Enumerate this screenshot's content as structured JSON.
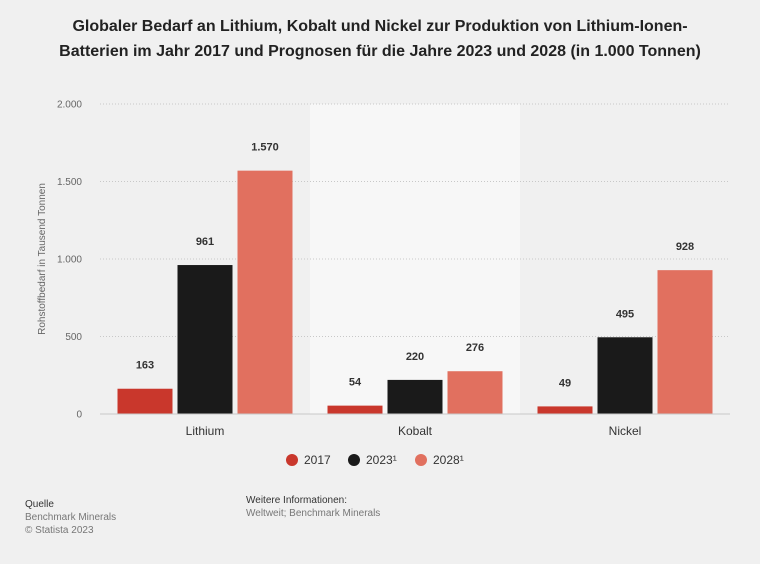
{
  "title": "Globaler Bedarf an Lithium, Kobalt und Nickel zur Produktion von Lithium-Ionen-Batterien im Jahr 2017 und Prognosen für die Jahre 2023 und 2028 (in 1.000 Tonnen)",
  "chart_data": {
    "type": "bar",
    "title": "Globaler Bedarf an Lithium, Kobalt und Nickel zur Produktion von Lithium-Ionen-Batterien im Jahr 2017 und Prognosen für die Jahre 2023 und 2028 (in 1.000 Tonnen)",
    "ylabel": "Rohstoffbedarf in Tausend Tonnen",
    "categories": [
      "Lithium",
      "Kobalt",
      "Nickel"
    ],
    "series": [
      {
        "name": "2017",
        "values": [
          163,
          54,
          49
        ],
        "color": "#c9372c"
      },
      {
        "name": "2023¹",
        "values": [
          961,
          220,
          495
        ],
        "color": "#1a1a1a"
      },
      {
        "name": "2028¹",
        "values": [
          1570,
          276,
          928
        ],
        "color": "#e1705f"
      }
    ],
    "data_labels": [
      [
        "163",
        "54",
        "49"
      ],
      [
        "961",
        "220",
        "495"
      ],
      [
        "1.570",
        "276",
        "928"
      ]
    ],
    "ylim": [
      0,
      2000
    ],
    "yticks": [
      0,
      500,
      1000,
      1500,
      2000
    ],
    "ytick_labels": [
      "0",
      "500",
      "1.000",
      "1.500",
      "2.000"
    ],
    "grid": true,
    "legend_position": "bottom"
  },
  "footer": {
    "source_head": "Quelle",
    "source_line1": "Benchmark Minerals",
    "source_line2": "© Statista 2023",
    "info_head": "Weitere Informationen:",
    "info_line": "Weltweit; Benchmark Minerals"
  }
}
